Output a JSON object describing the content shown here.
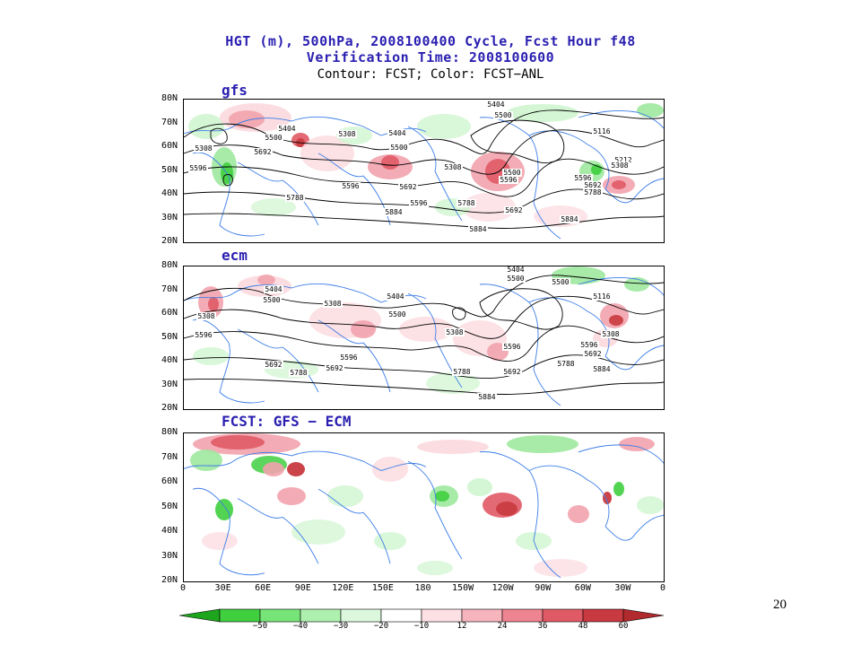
{
  "header": {
    "title_line1": "HGT (m), 500hPa, 2008100400 Cycle, Fcst Hour f48",
    "title_line2": "Verification Time: 2008100600",
    "subtitle": "Contour: FCST; Color: FCST−ANL"
  },
  "panels": [
    {
      "label": "gfs",
      "contour_labels": [
        "5404",
        "5500",
        "5308",
        "5404",
        "5500",
        "5308",
        "5404",
        "5500",
        "5692",
        "5596",
        "5596",
        "5788",
        "5884",
        "5308",
        "5500",
        "5692",
        "5884",
        "5596",
        "5116",
        "5212",
        "5308",
        "5596",
        "5692",
        "5788",
        "5884",
        "5788",
        "5692",
        "5596"
      ]
    },
    {
      "label": "ecm",
      "contour_labels": [
        "5404",
        "5500",
        "5404",
        "5500",
        "5308",
        "5308",
        "5596",
        "5692",
        "5596",
        "5788",
        "5692",
        "5404",
        "5500",
        "5308",
        "5788",
        "5596",
        "5692",
        "5884",
        "5116",
        "5308",
        "5596",
        "5692",
        "5788",
        "5884",
        "5500"
      ]
    },
    {
      "label": "FCST: GFS − ECM",
      "contour_labels": []
    }
  ],
  "axes": {
    "lat_ticks": [
      "80N",
      "70N",
      "60N",
      "50N",
      "40N",
      "30N",
      "20N"
    ],
    "lon_ticks": [
      "0",
      "30E",
      "60E",
      "90E",
      "120E",
      "150E",
      "180",
      "150W",
      "120W",
      "90W",
      "60W",
      "30W",
      "0"
    ]
  },
  "legend": {
    "labels": [
      "−50",
      "−40",
      "−30",
      "−20",
      "−10",
      "12",
      "24",
      "36",
      "48",
      "60"
    ],
    "colors": [
      "#1ea51e",
      "#3fcf3f",
      "#77e477",
      "#aef0ae",
      "#dcf8dc",
      "#ffffff",
      "#fde0e4",
      "#f6b4bd",
      "#ee8490",
      "#e05a66",
      "#c83a3f",
      "#b02a2e"
    ]
  },
  "page_number": "20"
}
